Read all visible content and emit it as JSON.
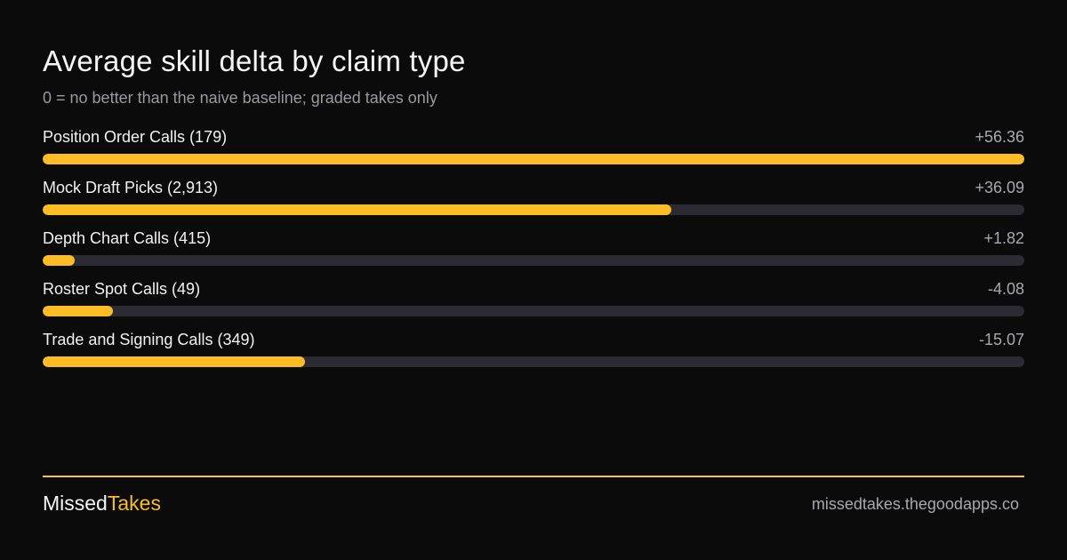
{
  "chart_data": {
    "type": "bar",
    "orientation": "horizontal",
    "title": "Average skill delta by claim type",
    "subtitle": "0 = no better than the naive baseline; graded takes only",
    "categories": [
      "Position Order Calls (179)",
      "Mock Draft Picks (2,913)",
      "Depth Chart Calls (415)",
      "Roster Spot Calls (49)",
      "Trade and Signing Calls (349)"
    ],
    "values": [
      56.36,
      36.09,
      1.82,
      -4.08,
      -15.07
    ],
    "value_labels": [
      "+56.36",
      "+36.09",
      "+1.82",
      "-4.08",
      "-15.07"
    ],
    "bar_fill_fraction": [
      1.0,
      0.64,
      0.033,
      0.072,
      0.267
    ],
    "colors": {
      "bar": "#fbbd23",
      "track": "#2c2a32",
      "background": "#0b0b0b"
    },
    "grid": false,
    "legend": "none"
  },
  "footer": {
    "brand_part1": "Missed",
    "brand_part2": "Takes",
    "url": "missedtakes.thegoodapps.co"
  }
}
